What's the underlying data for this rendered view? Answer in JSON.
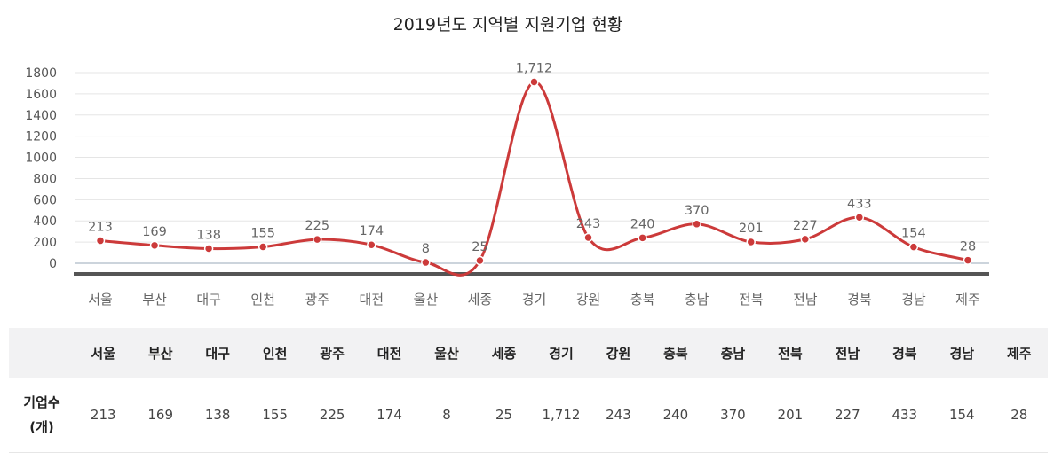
{
  "chart_data": {
    "type": "line",
    "title": "2019년도 지역별 지원기업 현황",
    "categories": [
      "서울",
      "부산",
      "대구",
      "인천",
      "광주",
      "대전",
      "울산",
      "세종",
      "경기",
      "강원",
      "충북",
      "충남",
      "전북",
      "전남",
      "경북",
      "경남",
      "제주"
    ],
    "values": [
      213,
      169,
      138,
      155,
      225,
      174,
      8,
      25,
      1712,
      243,
      240,
      370,
      201,
      227,
      433,
      154,
      28
    ],
    "data_labels": [
      "213",
      "169",
      "138",
      "155",
      "225",
      "174",
      "8",
      "25",
      "1,712",
      "243",
      "240",
      "370",
      "201",
      "227",
      "433",
      "154",
      "28"
    ],
    "yticks": [
      "0",
      "200",
      "400",
      "600",
      "800",
      "1000",
      "1200",
      "1400",
      "1600",
      "1800"
    ],
    "ylim": [
      0,
      1800
    ],
    "grid": true,
    "color": "#cc3a3a"
  },
  "table": {
    "row_header": [
      "기업수",
      "(개)"
    ],
    "columns": [
      "서울",
      "부산",
      "대구",
      "인천",
      "광주",
      "대전",
      "울산",
      "세종",
      "경기",
      "강원",
      "충북",
      "충남",
      "전북",
      "전남",
      "경북",
      "경남",
      "제주"
    ],
    "values": [
      "213",
      "169",
      "138",
      "155",
      "225",
      "174",
      "8",
      "25",
      "1,712",
      "243",
      "240",
      "370",
      "201",
      "227",
      "433",
      "154",
      "28"
    ]
  }
}
